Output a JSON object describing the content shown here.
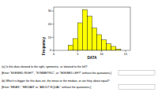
{
  "chart_data": {
    "type": "histogram",
    "x_label": "DATA",
    "y_label": "Frequency",
    "bins": [
      3,
      4,
      5,
      6,
      7,
      8,
      9,
      10,
      11,
      12,
      13,
      14
    ],
    "values": [
      4,
      9,
      21,
      31,
      26,
      17,
      12,
      8,
      5,
      3,
      1
    ],
    "color": "#ffff00",
    "xlim": [
      0,
      16
    ],
    "xticks": [
      0,
      5,
      10,
      15
    ],
    "ylim": [
      0,
      33
    ],
    "yticks": [
      0,
      10,
      20,
      30
    ]
  },
  "questions": [
    {
      "text": "(a) Is this data skewed to the right, symmetric, or skewed to the left?",
      "hint": "[Enter \"SKEWED RIGHT\", \"SYMMETRIC\", or \"SKEWED LEFT\" without the quotations.]"
    },
    {
      "text": "(b) Which is bigger for this data set, the mean or the median, or are they about equal?",
      "hint": "[Enter \"MEAN\", \"MEDIAN\" or \"ABOUT EQUAL\" without the quotations.]"
    }
  ]
}
